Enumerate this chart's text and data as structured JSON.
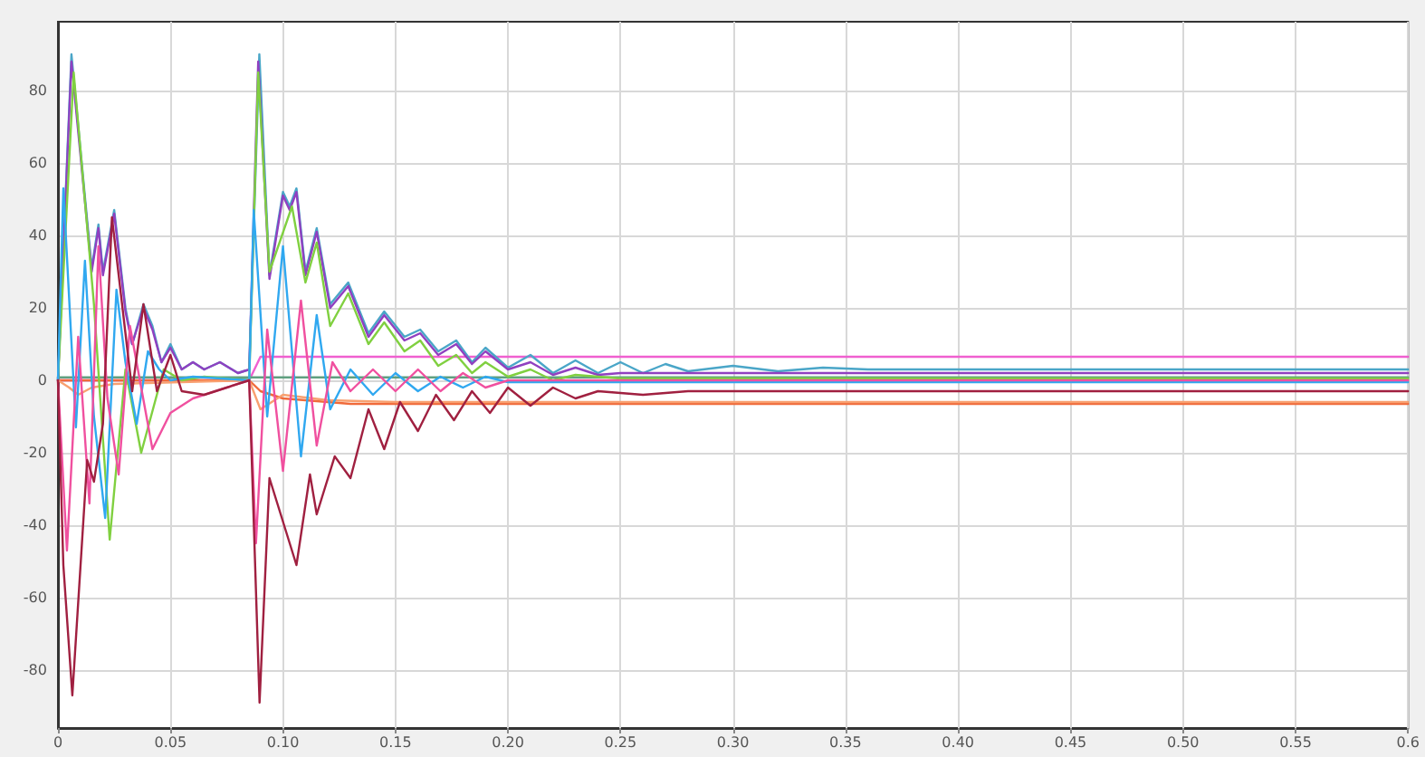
{
  "chart_data": {
    "type": "line",
    "xlim": [
      0,
      0.6
    ],
    "ylim": [
      -96,
      99
    ],
    "xticks": [
      {
        "value": 0,
        "label": "0"
      },
      {
        "value": 0.05,
        "label": "0.05"
      },
      {
        "value": 0.1,
        "label": "0.10"
      },
      {
        "value": 0.15,
        "label": "0.15"
      },
      {
        "value": 0.2,
        "label": "0.20"
      },
      {
        "value": 0.25,
        "label": "0.25"
      },
      {
        "value": 0.3,
        "label": "0.30"
      },
      {
        "value": 0.35,
        "label": "0.35"
      },
      {
        "value": 0.4,
        "label": "0.40"
      },
      {
        "value": 0.45,
        "label": "0.45"
      },
      {
        "value": 0.5,
        "label": "0.50"
      },
      {
        "value": 0.55,
        "label": "0.55"
      },
      {
        "value": 0.6,
        "label": "0.6"
      }
    ],
    "yticks": [
      -80,
      -60,
      -40,
      -20,
      0,
      20,
      40,
      60,
      80
    ],
    "grid": true,
    "marker": "none",
    "line_style": "solid",
    "series": [
      {
        "color": "#f060d0",
        "x": [
          0,
          0.085,
          0.09,
          0.6
        ],
        "values": [
          0,
          0,
          6.5,
          6.5
        ]
      },
      {
        "color": "#60a080",
        "x": [
          0,
          0.6
        ],
        "values": [
          0.8,
          0.8
        ]
      },
      {
        "color": "#f06a3a",
        "x": [
          0,
          0.085,
          0.09,
          0.1,
          0.13,
          0.6
        ],
        "values": [
          0,
          0,
          -3,
          -5,
          -6.5,
          -6.5
        ]
      },
      {
        "color": "#f8a070",
        "x": [
          0,
          0.005,
          0.009,
          0.015,
          0.025,
          0.085,
          0.09,
          0.1,
          0.12,
          0.15,
          0.6
        ],
        "values": [
          0,
          -2,
          -4,
          -2,
          -1,
          0,
          -8,
          -4,
          -5.5,
          -6,
          -6
        ]
      },
      {
        "color": "#4aa6c8",
        "x": [
          0,
          0.006,
          0.015,
          0.018,
          0.02,
          0.025,
          0.03,
          0.033,
          0.038,
          0.042,
          0.046,
          0.05,
          0.055,
          0.06,
          0.065,
          0.072,
          0.08,
          0.085,
          0.0895,
          0.094,
          0.1,
          0.103,
          0.106,
          0.11,
          0.115,
          0.121,
          0.129,
          0.138,
          0.145,
          0.154,
          0.161,
          0.169,
          0.177,
          0.184,
          0.19,
          0.2,
          0.21,
          0.22,
          0.23,
          0.24,
          0.25,
          0.26,
          0.27,
          0.28,
          0.3,
          0.32,
          0.34,
          0.36,
          0.6
        ],
        "values": [
          0,
          90,
          31,
          43,
          30,
          47,
          20,
          10,
          21,
          15,
          5,
          10,
          3,
          5,
          3,
          5,
          2,
          3,
          90,
          29,
          52,
          48,
          53,
          30,
          42,
          21,
          27,
          13,
          19,
          12,
          14,
          8,
          11,
          5,
          9,
          3.5,
          7,
          2,
          5.5,
          2,
          5,
          2,
          4.5,
          2.5,
          4,
          2.5,
          3.5,
          3,
          3
        ]
      },
      {
        "color": "#9040c0",
        "x": [
          0,
          0.006,
          0.015,
          0.018,
          0.02,
          0.025,
          0.03,
          0.033,
          0.038,
          0.042,
          0.046,
          0.05,
          0.055,
          0.06,
          0.065,
          0.072,
          0.08,
          0.085,
          0.089,
          0.094,
          0.1,
          0.103,
          0.106,
          0.11,
          0.115,
          0.121,
          0.129,
          0.138,
          0.145,
          0.154,
          0.161,
          0.169,
          0.177,
          0.184,
          0.19,
          0.2,
          0.21,
          0.22,
          0.23,
          0.24,
          0.25,
          0.6
        ],
        "values": [
          0,
          88,
          30,
          42,
          29,
          46,
          19,
          10,
          20,
          14,
          5,
          9,
          3,
          5,
          3,
          5,
          2,
          3,
          88,
          28,
          51,
          47,
          52,
          29,
          41,
          20,
          26,
          12,
          18,
          11,
          13,
          7,
          10,
          4.5,
          8,
          3,
          5,
          1.5,
          3.5,
          1.5,
          2,
          2
        ]
      },
      {
        "color": "#80d040",
        "x": [
          0,
          0.007,
          0.016,
          0.023,
          0.03,
          0.037,
          0.047,
          0.055,
          0.065,
          0.085,
          0.089,
          0.094,
          0.104,
          0.11,
          0.115,
          0.121,
          0.129,
          0.138,
          0.145,
          0.154,
          0.161,
          0.169,
          0.177,
          0.184,
          0.19,
          0.2,
          0.21,
          0.22,
          0.23,
          0.25,
          0.6
        ],
        "values": [
          0,
          85,
          21,
          -44,
          3,
          -20,
          3,
          0,
          1,
          0,
          85,
          30,
          48,
          27,
          38,
          15,
          24,
          10,
          16,
          8,
          11,
          4,
          7,
          2,
          5,
          1,
          3,
          0,
          1.5,
          0.5,
          0.5
        ]
      },
      {
        "color": "#30a8f0",
        "x": [
          0,
          0.0024,
          0.008,
          0.012,
          0.016,
          0.021,
          0.026,
          0.03,
          0.035,
          0.04,
          0.045,
          0.05,
          0.06,
          0.085,
          0.087,
          0.093,
          0.1,
          0.108,
          0.115,
          0.121,
          0.13,
          0.14,
          0.15,
          0.16,
          0.17,
          0.18,
          0.19,
          0.2,
          0.6
        ],
        "values": [
          0,
          53,
          -13,
          33,
          -10,
          -38,
          25,
          5,
          -12,
          8,
          3,
          0,
          1,
          0,
          47,
          -10,
          37,
          -21,
          18,
          -8,
          3,
          -4,
          2,
          -3,
          1,
          -2,
          1,
          -0.5,
          -0.5
        ]
      },
      {
        "color": "#f0509f",
        "x": [
          0,
          0.004,
          0.009,
          0.014,
          0.018,
          0.022,
          0.027,
          0.032,
          0.042,
          0.05,
          0.06,
          0.07,
          0.085,
          0.088,
          0.093,
          0.1,
          0.108,
          0.115,
          0.122,
          0.13,
          0.14,
          0.15,
          0.16,
          0.17,
          0.18,
          0.19,
          0.2,
          0.6
        ],
        "values": [
          0,
          -47,
          12,
          -34,
          37,
          -5,
          -26,
          15,
          -19,
          -9,
          -5,
          -3,
          0,
          -45,
          14,
          -25,
          22,
          -18,
          5,
          -3,
          3,
          -3,
          3,
          -3,
          2,
          -2,
          0,
          0
        ]
      },
      {
        "color": "#a02040",
        "x": [
          0,
          0.0024,
          0.0064,
          0.013,
          0.016,
          0.02,
          0.024,
          0.033,
          0.038,
          0.044,
          0.05,
          0.055,
          0.065,
          0.075,
          0.085,
          0.0896,
          0.094,
          0.106,
          0.112,
          0.115,
          0.123,
          0.13,
          0.138,
          0.145,
          0.152,
          0.16,
          0.168,
          0.176,
          0.184,
          0.192,
          0.2,
          0.21,
          0.22,
          0.23,
          0.24,
          0.26,
          0.28,
          0.3,
          0.6
        ],
        "values": [
          0,
          -51,
          -87,
          -22,
          -28,
          -12,
          45,
          -3,
          21,
          -3,
          7,
          -3,
          -4,
          -2,
          0,
          -89,
          -27,
          -51,
          -26,
          -37,
          -21,
          -27,
          -8,
          -19,
          -6,
          -14,
          -4,
          -11,
          -3,
          -9,
          -2,
          -7,
          -2,
          -5,
          -3,
          -4,
          -3,
          -3,
          -3
        ]
      }
    ]
  }
}
